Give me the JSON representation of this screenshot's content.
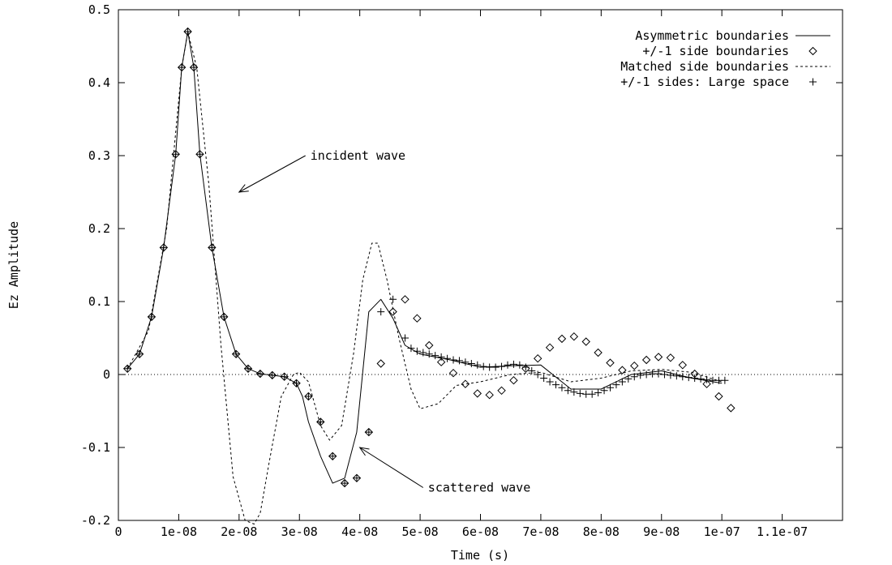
{
  "chart_data": {
    "type": "line",
    "title": "",
    "xlabel": "Time (s)",
    "ylabel": "Ez Amplitude",
    "xlim": [
      0,
      1.2e-07
    ],
    "ylim": [
      -0.2,
      0.5
    ],
    "x_ticks": [
      0,
      1e-08,
      2e-08,
      3e-08,
      4e-08,
      5e-08,
      6e-08,
      7e-08,
      8e-08,
      9e-08,
      1e-07,
      1.1e-07
    ],
    "x_tick_labels": [
      "0",
      "1e-08",
      "2e-08",
      "3e-08",
      "4e-08",
      "5e-08",
      "6e-08",
      "7e-08",
      "8e-08",
      "9e-08",
      "1e-07",
      "1.1e-07"
    ],
    "y_ticks": [
      -0.2,
      -0.1,
      0,
      0.1,
      0.2,
      0.3,
      0.4,
      0.5
    ],
    "y_tick_labels": [
      "-0.2",
      "-0.1",
      "0",
      "0.1",
      "0.2",
      "0.3",
      "0.4",
      "0.5"
    ],
    "grid": false,
    "legend": "top-right",
    "zero_line": true,
    "series": [
      {
        "name": "Asymmetric boundaries",
        "style": "solid-line",
        "x": [
          1.5e-09,
          3.5e-09,
          5.5e-09,
          7.5e-09,
          9.5e-09,
          1.05e-08,
          1.15e-08,
          1.25e-08,
          1.35e-08,
          1.55e-08,
          1.75e-08,
          1.95e-08,
          2.15e-08,
          2.35e-08,
          2.55e-08,
          2.75e-08,
          2.95e-08,
          3.05e-08,
          3.15e-08,
          3.35e-08,
          3.55e-08,
          3.75e-08,
          3.95e-08,
          4.15e-08,
          4.35e-08,
          4.55e-08,
          4.75e-08,
          5e-08,
          5.5e-08,
          6e-08,
          6.5e-08,
          7e-08,
          7.5e-08,
          8e-08,
          8.5e-08,
          9e-08,
          9.5e-08,
          1e-07
        ],
        "y": [
          0.008,
          0.028,
          0.079,
          0.174,
          0.302,
          0.421,
          0.47,
          0.421,
          0.302,
          0.174,
          0.079,
          0.028,
          0.008,
          0.001,
          -0.001,
          -0.003,
          -0.012,
          -0.03,
          -0.065,
          -0.112,
          -0.149,
          -0.142,
          -0.079,
          0.086,
          0.103,
          0.077,
          0.04,
          0.028,
          0.02,
          0.01,
          0.012,
          0.013,
          -0.02,
          -0.02,
          0.0,
          0.005,
          -0.005,
          -0.012
        ]
      },
      {
        "name": "+/-1 side boundaries",
        "style": "diamond-markers",
        "x": [
          1.5e-09,
          3.5e-09,
          5.5e-09,
          7.5e-09,
          9.5e-09,
          1.05e-08,
          1.15e-08,
          1.25e-08,
          1.35e-08,
          1.55e-08,
          1.75e-08,
          1.95e-08,
          2.15e-08,
          2.35e-08,
          2.55e-08,
          2.75e-08,
          2.95e-08,
          3.15e-08,
          3.35e-08,
          3.55e-08,
          3.75e-08,
          3.95e-08,
          4.15e-08,
          4.35e-08,
          4.55e-08,
          4.75e-08,
          4.95e-08,
          5.15e-08,
          5.35e-08,
          5.55e-08,
          5.75e-08,
          5.95e-08,
          6.15e-08,
          6.35e-08,
          6.55e-08,
          6.75e-08,
          6.95e-08,
          7.15e-08,
          7.35e-08,
          7.55e-08,
          7.75e-08,
          7.95e-08,
          8.15e-08,
          8.35e-08,
          8.55e-08,
          8.75e-08,
          8.95e-08,
          9.15e-08,
          9.35e-08,
          9.55e-08,
          9.75e-08,
          9.95e-08,
          1.015e-07
        ],
        "y": [
          0.008,
          0.028,
          0.079,
          0.174,
          0.302,
          0.421,
          0.47,
          0.421,
          0.302,
          0.174,
          0.079,
          0.028,
          0.008,
          0.001,
          -0.001,
          -0.003,
          -0.012,
          -0.03,
          -0.065,
          -0.112,
          -0.149,
          -0.142,
          -0.079,
          0.015,
          0.086,
          0.103,
          0.077,
          0.04,
          0.017,
          0.002,
          -0.013,
          -0.026,
          -0.028,
          -0.022,
          -0.008,
          0.008,
          0.022,
          0.037,
          0.049,
          0.052,
          0.045,
          0.03,
          0.016,
          0.006,
          0.012,
          0.02,
          0.024,
          0.023,
          0.013,
          0.001,
          -0.013,
          -0.03,
          -0.046
        ]
      },
      {
        "name": "Matched side boundaries",
        "style": "dotted-line",
        "x": [
          1.5e-09,
          5e-09,
          8e-09,
          1.05e-08,
          1.15e-08,
          1.3e-08,
          1.5e-08,
          1.7e-08,
          1.9e-08,
          2.1e-08,
          2.25e-08,
          2.35e-08,
          2.5e-08,
          2.7e-08,
          2.9e-08,
          3e-08,
          3.15e-08,
          3.35e-08,
          3.5e-08,
          3.7e-08,
          3.9e-08,
          4.05e-08,
          4.2e-08,
          4.3e-08,
          4.45e-08,
          4.65e-08,
          4.85e-08,
          5e-08,
          5.3e-08,
          5.6e-08,
          6e-08,
          6.5e-08,
          7e-08,
          7.5e-08,
          8e-08,
          8.5e-08,
          9e-08,
          9.5e-08,
          1e-07
        ],
        "y": [
          0.008,
          0.06,
          0.2,
          0.42,
          0.47,
          0.42,
          0.26,
          0.04,
          -0.14,
          -0.2,
          -0.205,
          -0.19,
          -0.12,
          -0.03,
          0.0,
          0.003,
          -0.01,
          -0.07,
          -0.09,
          -0.07,
          0.03,
          0.13,
          0.18,
          0.18,
          0.13,
          0.05,
          -0.02,
          -0.047,
          -0.04,
          -0.015,
          -0.01,
          0.0,
          0.003,
          -0.01,
          -0.005,
          0.005,
          0.007,
          0.003,
          -0.01
        ]
      },
      {
        "name": "+/-1 sides: Large space",
        "style": "plus-markers",
        "x": [
          1.5e-09,
          3.5e-09,
          5.5e-09,
          7.5e-09,
          9.5e-09,
          1.05e-08,
          1.15e-08,
          1.25e-08,
          1.35e-08,
          1.55e-08,
          1.75e-08,
          1.95e-08,
          2.15e-08,
          2.35e-08,
          2.55e-08,
          2.75e-08,
          2.95e-08,
          3.15e-08,
          3.35e-08,
          3.55e-08,
          3.75e-08,
          3.95e-08,
          4.15e-08,
          4.35e-08,
          4.55e-08,
          4.75e-08,
          4.85e-08,
          4.95e-08,
          5.05e-08,
          5.15e-08,
          5.25e-08,
          5.35e-08,
          5.45e-08,
          5.55e-08,
          5.65e-08,
          5.75e-08,
          5.85e-08,
          5.95e-08,
          6.05e-08,
          6.15e-08,
          6.25e-08,
          6.35e-08,
          6.45e-08,
          6.55e-08,
          6.65e-08,
          6.75e-08,
          6.85e-08,
          6.95e-08,
          7.05e-08,
          7.15e-08,
          7.25e-08,
          7.35e-08,
          7.45e-08,
          7.55e-08,
          7.65e-08,
          7.75e-08,
          7.85e-08,
          7.95e-08,
          8.05e-08,
          8.15e-08,
          8.25e-08,
          8.35e-08,
          8.45e-08,
          8.55e-08,
          8.65e-08,
          8.75e-08,
          8.85e-08,
          8.95e-08,
          9.05e-08,
          9.15e-08,
          9.25e-08,
          9.35e-08,
          9.45e-08,
          9.55e-08,
          9.65e-08,
          9.75e-08,
          9.85e-08,
          9.95e-08,
          1.005e-07
        ],
        "y": [
          0.008,
          0.028,
          0.079,
          0.174,
          0.302,
          0.421,
          0.47,
          0.421,
          0.302,
          0.174,
          0.079,
          0.028,
          0.008,
          0.001,
          -0.001,
          -0.003,
          -0.012,
          -0.03,
          -0.065,
          -0.112,
          -0.149,
          -0.142,
          -0.079,
          0.086,
          0.103,
          0.05,
          0.036,
          0.032,
          0.03,
          0.028,
          0.026,
          0.024,
          0.022,
          0.02,
          0.019,
          0.017,
          0.015,
          0.013,
          0.011,
          0.01,
          0.01,
          0.011,
          0.013,
          0.014,
          0.013,
          0.01,
          0.005,
          0.0,
          -0.005,
          -0.01,
          -0.014,
          -0.018,
          -0.022,
          -0.024,
          -0.026,
          -0.027,
          -0.027,
          -0.025,
          -0.022,
          -0.018,
          -0.014,
          -0.01,
          -0.006,
          -0.003,
          -0.001,
          0.0,
          0.001,
          0.001,
          0.0,
          -0.001,
          -0.002,
          -0.003,
          -0.004,
          -0.005,
          -0.006,
          -0.007,
          -0.008,
          -0.008,
          -0.008
        ]
      }
    ],
    "annotations": [
      {
        "text": "incident wave",
        "x": 3.1e-08,
        "y": 0.3,
        "arrow_to": [
          2e-08,
          0.25
        ]
      },
      {
        "text": "scattered wave",
        "x": 5.05e-08,
        "y": -0.155,
        "arrow_to": [
          4e-08,
          -0.1
        ]
      }
    ]
  }
}
